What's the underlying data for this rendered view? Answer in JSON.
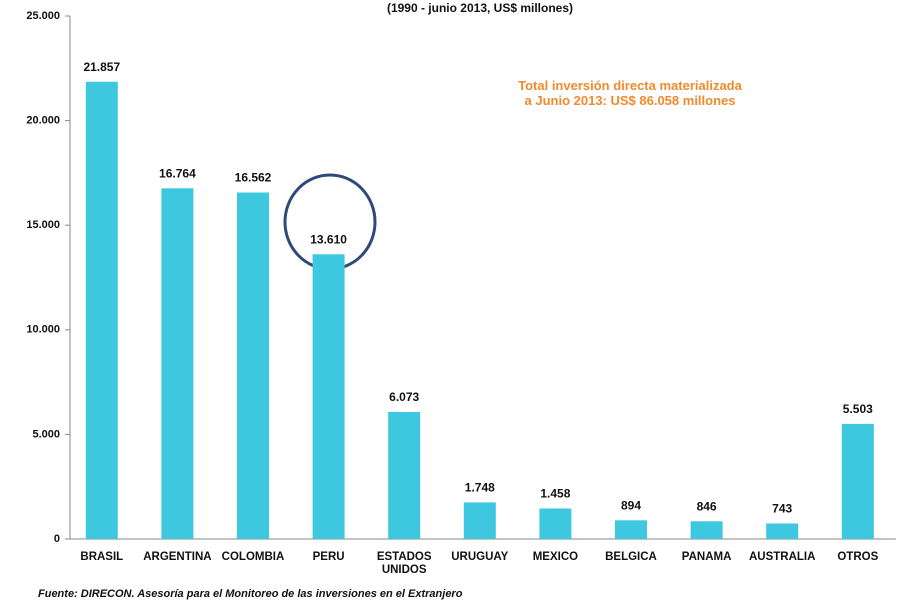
{
  "chart_data": {
    "type": "bar",
    "subtitle": "(1990 -  junio 2013, US$ millones)",
    "annotation": [
      "Total inversión directa materializada",
      "a Junio 2013:  US$ 86.058 millones"
    ],
    "source": "Fuente: DIRECON. Asesoría para el Monitoreo de las inversiones en el Extranjero",
    "categories": [
      "BRASIL",
      "ARGENTINA",
      "COLOMBIA",
      "PERU",
      "ESTADOS UNIDOS",
      "URUGUAY",
      "MEXICO",
      "BELGICA",
      "PANAMA",
      "AUSTRALIA",
      "OTROS"
    ],
    "values": [
      21857,
      16764,
      16562,
      13610,
      6073,
      1748,
      1458,
      894,
      846,
      743,
      5503
    ],
    "value_labels": [
      "21.857",
      "16.764",
      "16.562",
      "13.610",
      "6.073",
      "1.748",
      "1.458",
      "894",
      "846",
      "743",
      "5.503"
    ],
    "color": "#3ec8e0",
    "ylim": [
      0,
      25000
    ],
    "yticks": [
      0,
      {
        "value": 5000,
        "label": "5.000"
      },
      {
        "value": 10000,
        "label": "10.000"
      },
      {
        "value": 15000,
        "label": "15.000"
      },
      {
        "value": 20000,
        "label": "20.000"
      },
      {
        "value": 25000,
        "label": "25.000"
      }
    ]
  }
}
